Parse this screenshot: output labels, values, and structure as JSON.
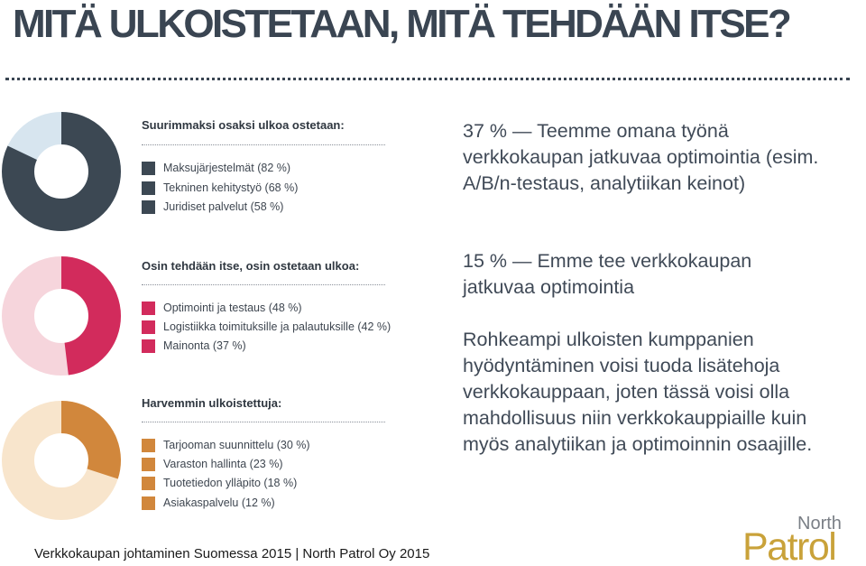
{
  "slide": {
    "title": "MITÄ ULKOISTETAAN, MITÄ TEHDÄÄN ITSE?",
    "footer": "Verkkokaupan johtaminen Suomessa 2015 | North Patrol Oy 2015"
  },
  "infographic": {
    "sections": [
      {
        "heading": "Suurimmaksi osaksi ulkoa ostetaan:",
        "donut_percent": 82,
        "colors": {
          "main": "#3c4853",
          "light": "#d7e5ef"
        },
        "items": [
          {
            "label": "Maksujärjestelmät (82 %)",
            "percent": 82
          },
          {
            "label": "Tekninen kehitystyö (68 %)",
            "percent": 68
          },
          {
            "label": "Juridiset palvelut (58 %)",
            "percent": 58
          }
        ]
      },
      {
        "heading": "Osin tehdään itse, osin ostetaan ulkoa:",
        "donut_percent": 48,
        "colors": {
          "main": "#d22b5c",
          "light": "#f6d5dc"
        },
        "items": [
          {
            "label": "Optimointi ja testaus (48 %)",
            "percent": 48
          },
          {
            "label": "Logistiikka toimituksille ja palautuksille (42 %)",
            "percent": 42
          },
          {
            "label": "Mainonta (37 %)",
            "percent": 37
          }
        ]
      },
      {
        "heading": "Harvemmin ulkoistettuja:",
        "donut_percent": 30,
        "colors": {
          "main": "#d1873c",
          "light": "#f8e5cc"
        },
        "items": [
          {
            "label": "Tarjooman suunnittelu (30 %)",
            "percent": 30
          },
          {
            "label": "Varaston hallinta (23 %)",
            "percent": 23
          },
          {
            "label": "Tuotetiedon ylläpito (18 %)",
            "percent": 18
          },
          {
            "label": "Asiakaspalvelu (12 %)",
            "percent": 12
          }
        ]
      }
    ]
  },
  "findings": {
    "p1": "37 % — Teemme omana työnä verkkokaupan jatkuvaa optimointia (esim. A/B/n-testaus, analytiikan keinot)",
    "p2": "15 % — Emme tee verkkokaupan jatkuvaa optimointia",
    "p3": "Rohkeampi ulkoisten kumppanien hyödyntäminen voisi tuoda lisätehoja verkkokauppaan, joten tässä voisi olla mahdollisuus niin verkkokauppiaille kuin myös analytiikan ja optimoinnin osaajille."
  },
  "logo": {
    "line1": "North",
    "line2": "Patrol",
    "colors": {
      "north": "#7a7f86",
      "patrol": "#c9a23a"
    }
  }
}
